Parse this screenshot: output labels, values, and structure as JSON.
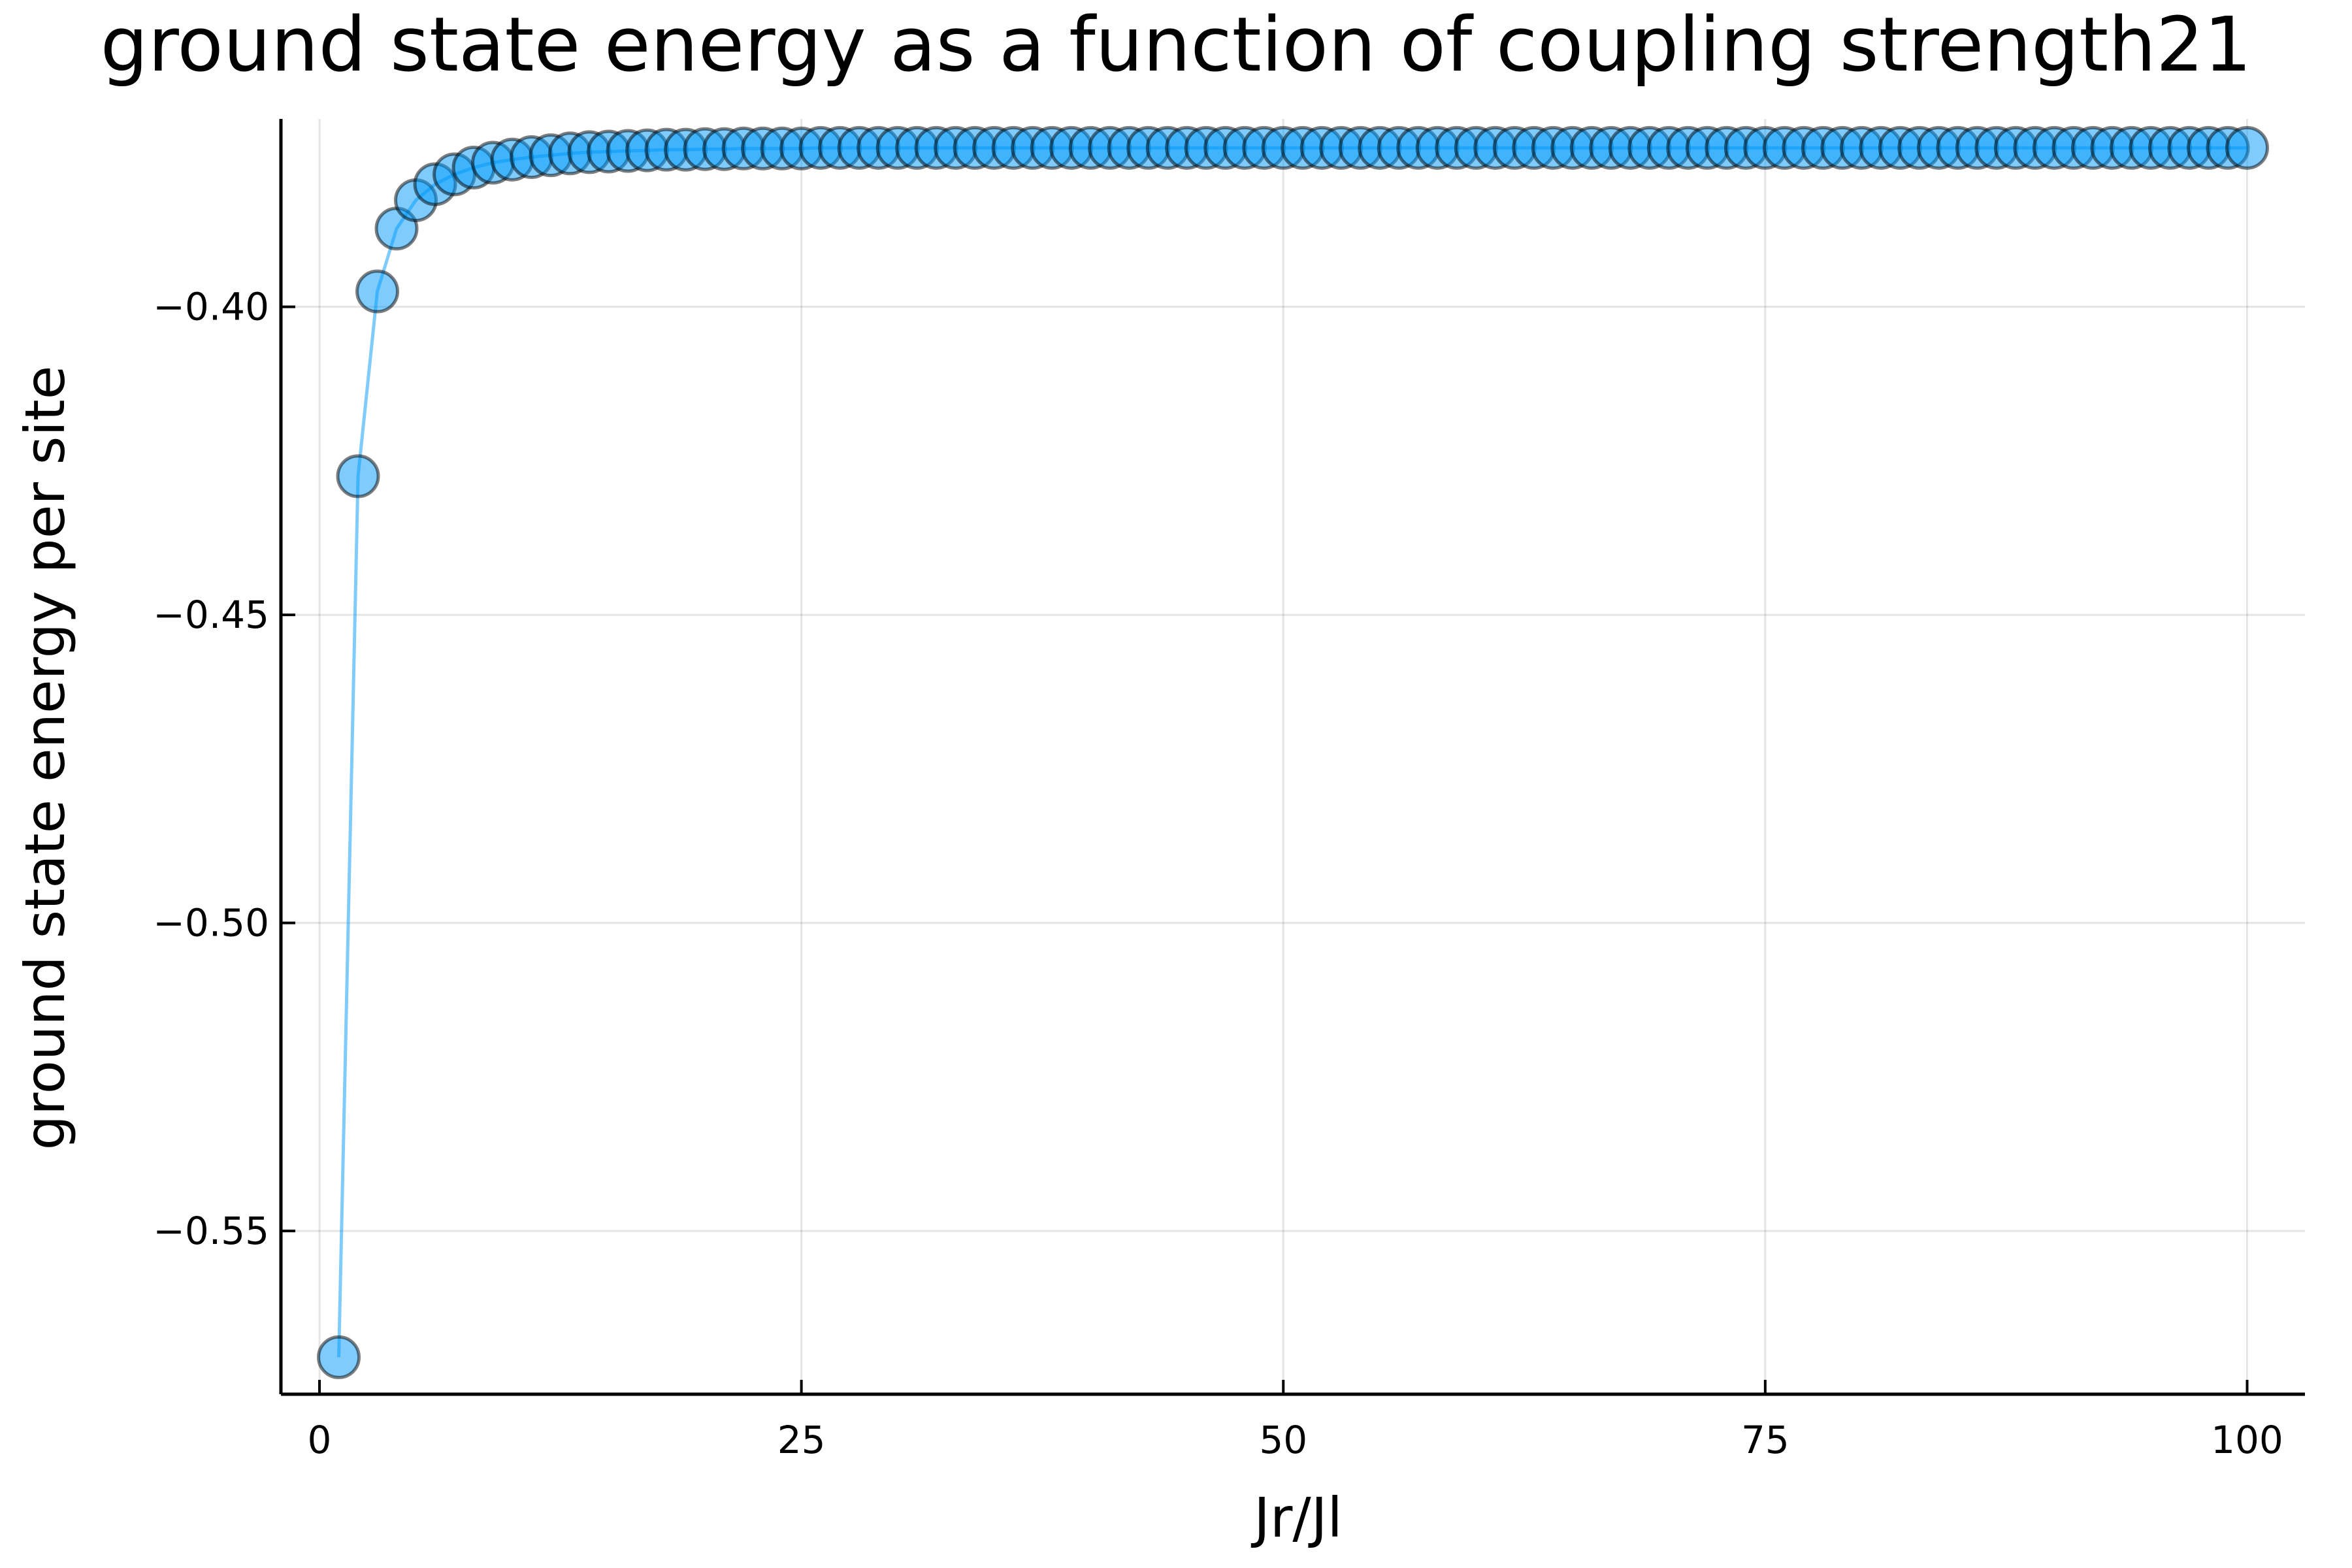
{
  "chart_data": {
    "type": "scatter",
    "title": "ground state energy as a function of coupling strength21",
    "xlabel": "Jr/Jl",
    "ylabel": "ground state energy per site",
    "xlim": [
      -2,
      103
    ],
    "ylim": [
      -0.5765,
      -0.3695
    ],
    "x_ticks": [
      0,
      25,
      50,
      75,
      100
    ],
    "x_tick_labels": [
      "0",
      "25",
      "50",
      "75",
      "100"
    ],
    "y_ticks": [
      -0.4,
      -0.45,
      -0.5,
      -0.55
    ],
    "y_tick_labels": [
      "−0.40",
      "−0.45",
      "−0.50",
      "−0.55"
    ],
    "grid": true,
    "legend": "none",
    "series_color": "#009af9",
    "series": [
      {
        "x": [
          1,
          2,
          3,
          4,
          5,
          6,
          7,
          8,
          9,
          10,
          11,
          12,
          13,
          14,
          15,
          16,
          17,
          18,
          19,
          20,
          21,
          22,
          23,
          24,
          25,
          26,
          27,
          28,
          29,
          30,
          31,
          32,
          33,
          34,
          35,
          36,
          37,
          38,
          39,
          40,
          41,
          42,
          43,
          44,
          45,
          46,
          47,
          48,
          49,
          50,
          51,
          52,
          53,
          54,
          55,
          56,
          57,
          58,
          59,
          60,
          61,
          62,
          63,
          64,
          65,
          66,
          67,
          68,
          69,
          70,
          71,
          72,
          73,
          74,
          75,
          76,
          77,
          78,
          79,
          80,
          81,
          82,
          83,
          84,
          85,
          86,
          87,
          88,
          89,
          90,
          91,
          92,
          93,
          94,
          95,
          96,
          97,
          98,
          99,
          100
        ],
        "y": [
          -0.5705,
          -0.4275,
          -0.3975,
          -0.3873,
          -0.3827,
          -0.3801,
          -0.3785,
          -0.3774,
          -0.3766,
          -0.3761,
          -0.3757,
          -0.3754,
          -0.3751,
          -0.3749,
          -0.3748,
          -0.3747,
          -0.3746,
          -0.3745,
          -0.3745,
          -0.3744,
          -0.3744,
          -0.3743,
          -0.3743,
          -0.3743,
          -0.3743,
          -0.3742,
          -0.3742,
          -0.3742,
          -0.3742,
          -0.3742,
          -0.3742,
          -0.3742,
          -0.3742,
          -0.3742,
          -0.3742,
          -0.3742,
          -0.3742,
          -0.3742,
          -0.3742,
          -0.3742,
          -0.3742,
          -0.3742,
          -0.3742,
          -0.3742,
          -0.3742,
          -0.3742,
          -0.3742,
          -0.3742,
          -0.3742,
          -0.3742,
          -0.3742,
          -0.3742,
          -0.3742,
          -0.3742,
          -0.3742,
          -0.3742,
          -0.3742,
          -0.3742,
          -0.3742,
          -0.3742,
          -0.3742,
          -0.3742,
          -0.3742,
          -0.3742,
          -0.3742,
          -0.3742,
          -0.3742,
          -0.3742,
          -0.3742,
          -0.3742,
          -0.3742,
          -0.3742,
          -0.3742,
          -0.3742,
          -0.3742,
          -0.3742,
          -0.3742,
          -0.3742,
          -0.3742,
          -0.3742,
          -0.3742,
          -0.3742,
          -0.3742,
          -0.3742,
          -0.3742,
          -0.3742,
          -0.3742,
          -0.3742,
          -0.3742,
          -0.3742,
          -0.3742,
          -0.3742,
          -0.3742,
          -0.3742,
          -0.3742,
          -0.3742,
          -0.3742,
          -0.3742,
          -0.3742,
          -0.3742
        ]
      }
    ]
  }
}
